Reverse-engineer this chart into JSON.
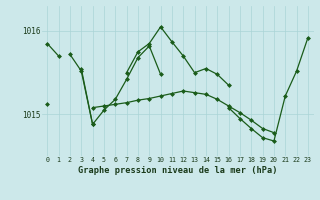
{
  "title": "Graphe pression niveau de la mer (hPa)",
  "bg_color": "#cce8ea",
  "grid_color_v": "#aad4d6",
  "grid_color_h": "#aad4d6",
  "line_color": "#1a5c1a",
  "hours": [
    0,
    1,
    2,
    3,
    4,
    5,
    6,
    7,
    8,
    9,
    10,
    11,
    12,
    13,
    14,
    15,
    16,
    17,
    18,
    19,
    20,
    21,
    22,
    23
  ],
  "line1": [
    1015.85,
    1015.7,
    null,
    1015.55,
    1014.88,
    null,
    null,
    1015.5,
    1015.75,
    1015.85,
    1016.05,
    1015.87,
    1015.7,
    1015.5,
    1015.55,
    1015.48,
    1015.35,
    null,
    null,
    null,
    null,
    null,
    null,
    null
  ],
  "line2": [
    null,
    null,
    1015.72,
    1015.52,
    1014.88,
    1015.05,
    1015.18,
    1015.42,
    1015.68,
    1015.82,
    1015.48,
    null,
    null,
    null,
    null,
    null,
    null,
    null,
    null,
    null,
    null,
    null,
    null,
    null
  ],
  "line3": [
    1015.12,
    null,
    null,
    null,
    1015.08,
    1015.1,
    1015.12,
    1015.14,
    1015.17,
    1015.19,
    1015.22,
    1015.25,
    1015.28,
    1015.26,
    1015.24,
    1015.18,
    1015.1,
    1015.02,
    1014.93,
    1014.83,
    1014.78,
    null,
    null,
    null
  ],
  "line4": [
    null,
    null,
    null,
    null,
    null,
    null,
    null,
    null,
    null,
    null,
    null,
    null,
    null,
    null,
    null,
    null,
    1015.08,
    1014.95,
    1014.83,
    1014.72,
    1014.68,
    1015.22,
    1015.52,
    1015.92
  ],
  "ylim_lo": 1014.5,
  "ylim_hi": 1016.3,
  "yticks": [
    1015.0,
    1016.0
  ],
  "marker_size": 2.5,
  "lw": 0.9
}
